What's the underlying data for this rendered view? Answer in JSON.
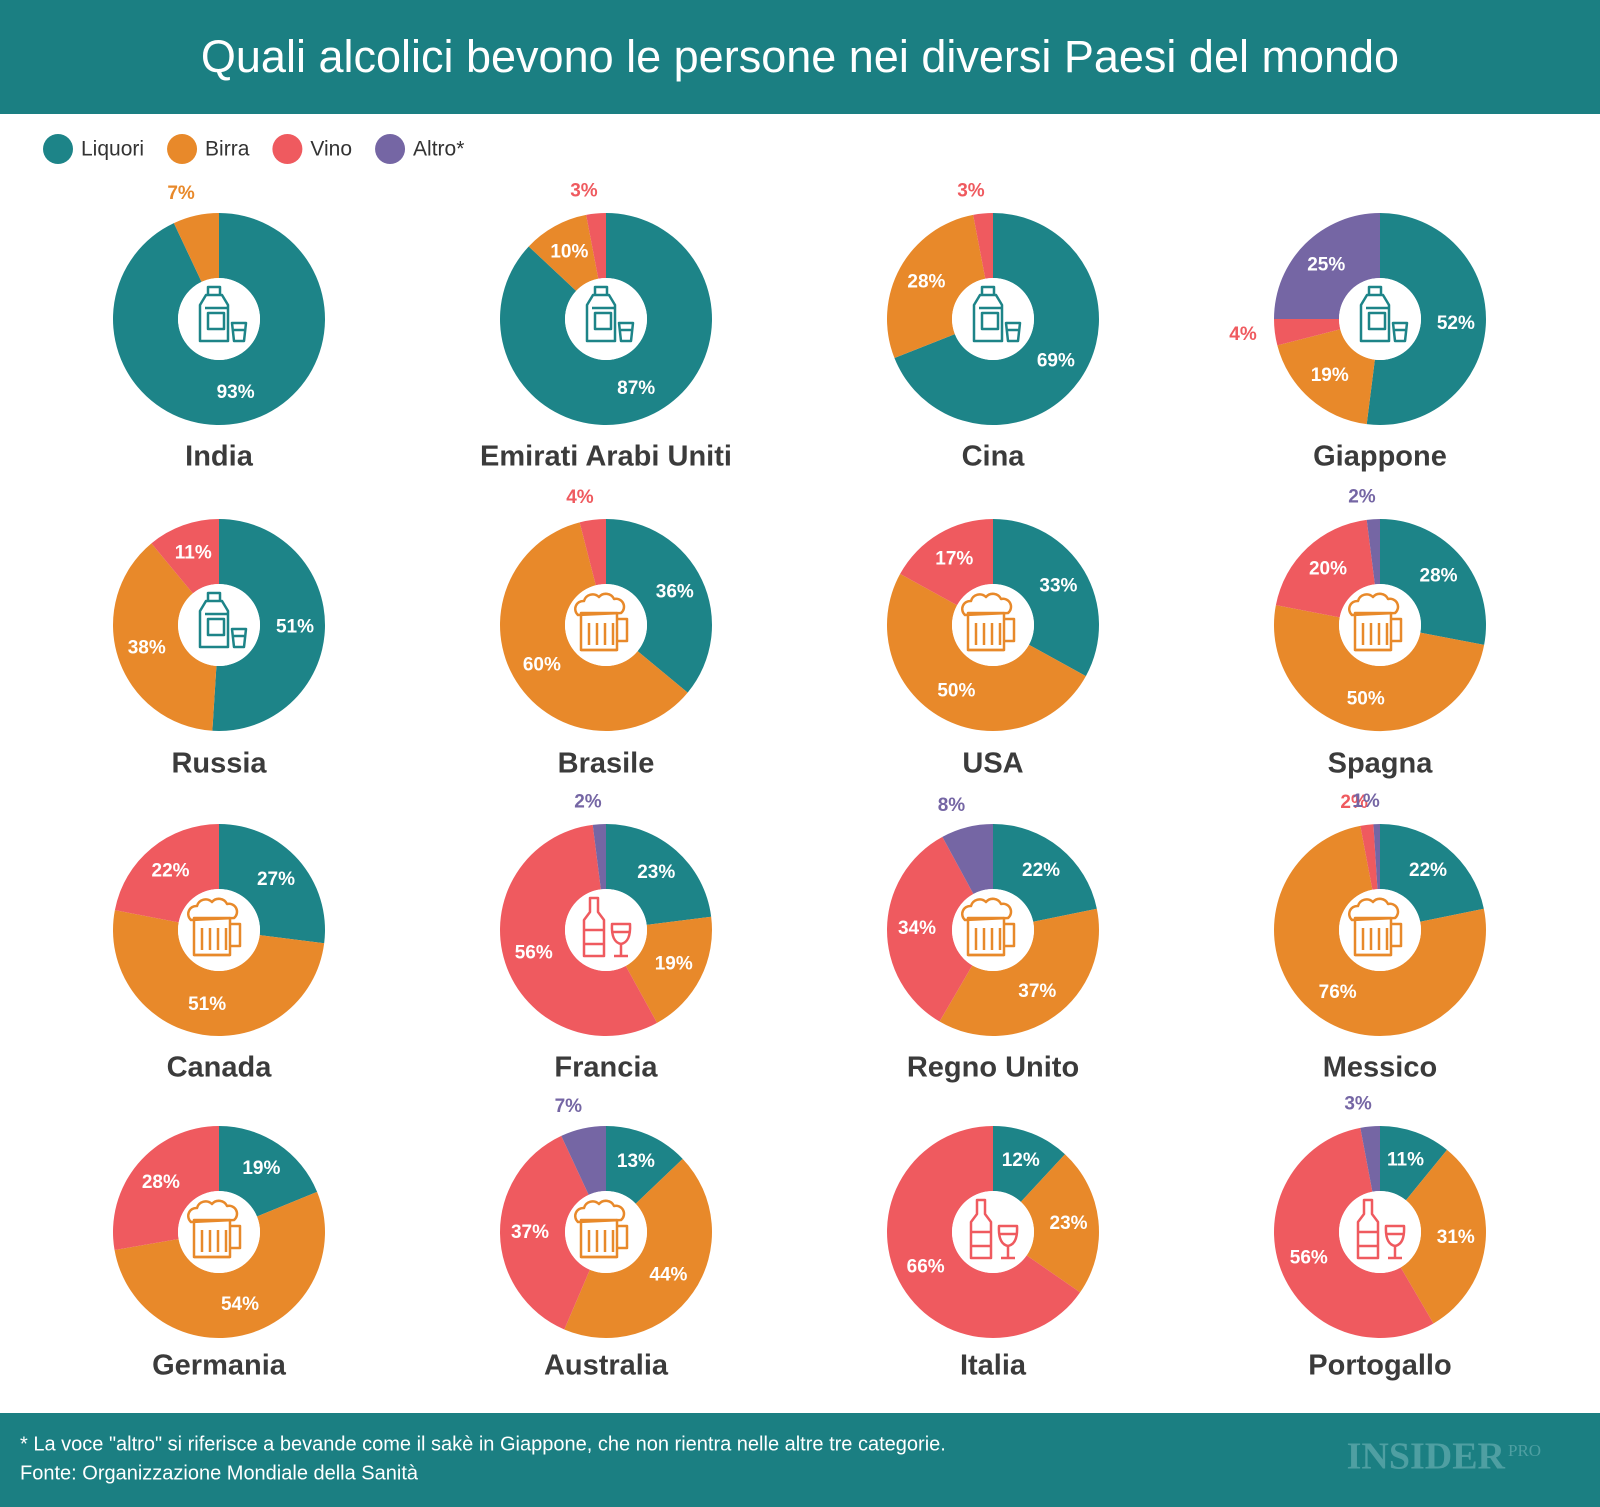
{
  "title": "Quali alcolici bevono le persone nei diversi Paesi del mondo",
  "legend": [
    {
      "name": "Liquori",
      "color": "#1d8488"
    },
    {
      "name": "Birra",
      "color": "#e8892a"
    },
    {
      "name": "Vino",
      "color": "#ef5a5f"
    },
    {
      "name": "Altro*",
      "color": "#7566a4"
    }
  ],
  "chart_data": [
    {
      "type": "pie",
      "title": "India",
      "categories": [
        "Liquori",
        "Birra"
      ],
      "values": [
        93,
        7
      ],
      "value_labels": [
        "93%",
        "7%"
      ]
    },
    {
      "type": "pie",
      "title": "Emirati Arabi Uniti",
      "categories": [
        "Liquori",
        "Birra",
        "Vino"
      ],
      "values": [
        87,
        10,
        3
      ],
      "value_labels": [
        "87%",
        "10%",
        "3%"
      ]
    },
    {
      "type": "pie",
      "title": "Cina",
      "categories": [
        "Liquori",
        "Birra",
        "Vino"
      ],
      "values": [
        69,
        28,
        3
      ],
      "value_labels": [
        "69%",
        "28%",
        "3%"
      ]
    },
    {
      "type": "pie",
      "title": "Giappone",
      "categories": [
        "Liquori",
        "Birra",
        "Vino",
        "Altro*"
      ],
      "values": [
        52,
        19,
        4,
        25
      ],
      "value_labels": [
        "52%",
        "19%",
        "4%",
        "25%"
      ]
    },
    {
      "type": "pie",
      "title": "Russia",
      "categories": [
        "Liquori",
        "Birra",
        "Vino"
      ],
      "values": [
        51,
        38,
        11
      ],
      "value_labels": [
        "51%",
        "38%",
        "11%"
      ]
    },
    {
      "type": "pie",
      "title": "Brasile",
      "categories": [
        "Liquori",
        "Birra",
        "Vino"
      ],
      "values": [
        36,
        60,
        4
      ],
      "value_labels": [
        "36%",
        "60%",
        "4%"
      ]
    },
    {
      "type": "pie",
      "title": "USA",
      "categories": [
        "Liquori",
        "Birra",
        "Vino"
      ],
      "values": [
        33,
        50,
        17
      ],
      "value_labels": [
        "33%",
        "50%",
        "17%"
      ]
    },
    {
      "type": "pie",
      "title": "Spagna",
      "categories": [
        "Liquori",
        "Birra",
        "Vino",
        "Altro*"
      ],
      "values": [
        28,
        50,
        20,
        2
      ],
      "value_labels": [
        "28%",
        "50%",
        "20%",
        "2%"
      ]
    },
    {
      "type": "pie",
      "title": "Canada",
      "categories": [
        "Liquori",
        "Birra",
        "Vino"
      ],
      "values": [
        27,
        51,
        22
      ],
      "value_labels": [
        "27%",
        "51%",
        "22%"
      ]
    },
    {
      "type": "pie",
      "title": "Francia",
      "categories": [
        "Liquori",
        "Birra",
        "Vino",
        "Altro*"
      ],
      "values": [
        23,
        19,
        56,
        2
      ],
      "value_labels": [
        "23%",
        "19%",
        "56%",
        "2%"
      ]
    },
    {
      "type": "pie",
      "title": "Regno Unito",
      "categories": [
        "Liquori",
        "Birra",
        "Vino",
        "Altro*"
      ],
      "values": [
        22,
        37,
        34,
        8
      ],
      "value_labels": [
        "22%",
        "37%",
        "34%",
        "8%"
      ]
    },
    {
      "type": "pie",
      "title": "Messico",
      "categories": [
        "Liquori",
        "Birra",
        "Vino",
        "Altro*"
      ],
      "values": [
        22,
        76,
        2,
        1
      ],
      "value_labels": [
        "22%",
        "76%",
        "2%",
        "1%"
      ]
    },
    {
      "type": "pie",
      "title": "Germania",
      "categories": [
        "Liquori",
        "Birra",
        "Vino"
      ],
      "values": [
        19,
        54,
        28
      ],
      "value_labels": [
        "19%",
        "54%",
        "28%"
      ]
    },
    {
      "type": "pie",
      "title": "Australia",
      "categories": [
        "Liquori",
        "Birra",
        "Vino",
        "Altro*"
      ],
      "values": [
        13,
        44,
        37,
        7
      ],
      "value_labels": [
        "13%",
        "44%",
        "37%",
        "7%"
      ]
    },
    {
      "type": "pie",
      "title": "Italia",
      "categories": [
        "Liquori",
        "Birra",
        "Vino"
      ],
      "values": [
        12,
        23,
        66
      ],
      "value_labels": [
        "12%",
        "23%",
        "66%"
      ]
    },
    {
      "type": "pie",
      "title": "Portogallo",
      "categories": [
        "Liquori",
        "Birra",
        "Vino",
        "Altro*"
      ],
      "values": [
        11,
        31,
        56,
        3
      ],
      "value_labels": [
        "11%",
        "31%",
        "56%",
        "3%"
      ]
    }
  ],
  "footnote": "* La voce \"altro\" si riferisce a bevande come il sakè in Giappone, che non rientra nelle altre tre categorie.",
  "source": "Fonte: Organizzazione Mondiale della Sanità",
  "brand": {
    "name": "INSIDER",
    "suffix": "PRO"
  }
}
